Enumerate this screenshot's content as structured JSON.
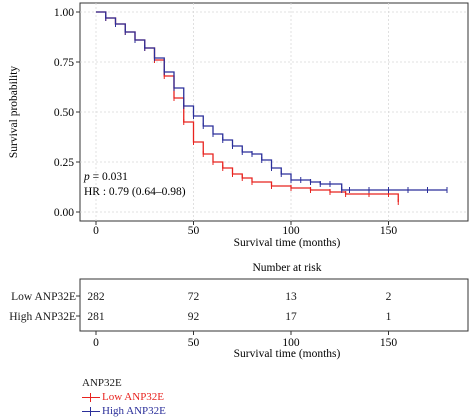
{
  "chart_data": {
    "type": "line",
    "step": true,
    "xlabel": "Survival time (months)",
    "ylabel": "Survival probability",
    "xlim": [
      0,
      185
    ],
    "ylim": [
      0,
      1
    ],
    "xticks": [
      0,
      50,
      100,
      150
    ],
    "yticks": [
      0.0,
      0.25,
      0.5,
      0.75,
      1.0
    ],
    "ytick_labels": [
      "0.00",
      "0.25",
      "0.50",
      "0.75",
      "1.00"
    ],
    "grid": true,
    "annotations": {
      "p_symbol": "p",
      "p_value": " = 0.031",
      "hr": "HR : 0.79 (0.64–0.98)"
    },
    "legend": {
      "title": "ANP32E",
      "position": "bottom-left"
    },
    "series": [
      {
        "name": "Low ANP32E",
        "color": "#e8231f",
        "x": [
          0,
          5,
          10,
          15,
          20,
          25,
          30,
          35,
          40,
          45,
          50,
          55,
          60,
          65,
          70,
          75,
          80,
          90,
          100,
          110,
          120,
          128,
          140,
          150,
          155
        ],
        "y": [
          1.0,
          0.97,
          0.94,
          0.9,
          0.86,
          0.82,
          0.76,
          0.68,
          0.57,
          0.45,
          0.35,
          0.29,
          0.25,
          0.22,
          0.19,
          0.17,
          0.15,
          0.13,
          0.12,
          0.11,
          0.1,
          0.09,
          0.09,
          0.09,
          0.05
        ]
      },
      {
        "name": "High ANP32E",
        "color": "#2b2f9a",
        "x": [
          0,
          5,
          10,
          15,
          20,
          25,
          30,
          35,
          40,
          45,
          50,
          55,
          60,
          65,
          70,
          75,
          80,
          85,
          90,
          95,
          100,
          105,
          110,
          115,
          120,
          126,
          130,
          140,
          150,
          160,
          170,
          180
        ],
        "y": [
          1.0,
          0.97,
          0.94,
          0.9,
          0.86,
          0.82,
          0.77,
          0.7,
          0.62,
          0.53,
          0.48,
          0.43,
          0.39,
          0.36,
          0.33,
          0.3,
          0.29,
          0.26,
          0.22,
          0.19,
          0.16,
          0.16,
          0.15,
          0.14,
          0.14,
          0.11,
          0.11,
          0.11,
          0.11,
          0.11,
          0.11,
          0.11
        ]
      }
    ]
  },
  "risk_table": {
    "title": "Number at risk",
    "xlabel": "Survival time (months)",
    "x": [
      0,
      50,
      100,
      150
    ],
    "rows": [
      {
        "label": "Low ANP32E",
        "color": "#e8231f",
        "counts": [
          "282",
          "72",
          "13",
          "2"
        ]
      },
      {
        "label": "High ANP32E",
        "color": "#2b2f9a",
        "counts": [
          "281",
          "92",
          "17",
          "1"
        ]
      }
    ]
  }
}
